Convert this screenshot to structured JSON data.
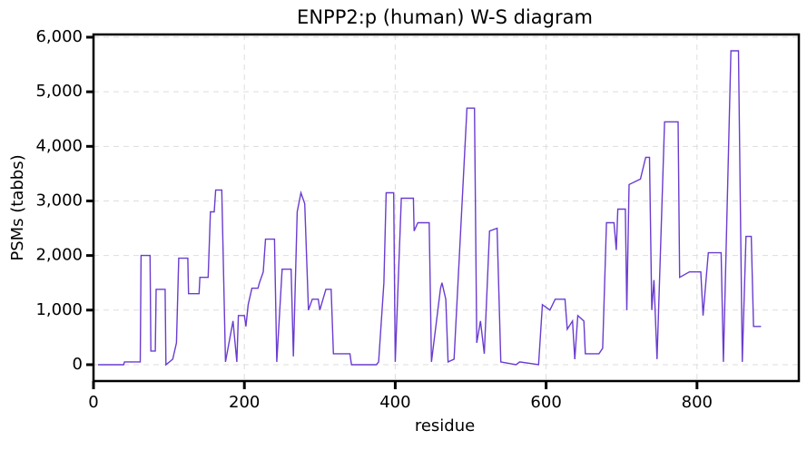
{
  "chart_data": {
    "type": "line",
    "title": "ENPP2:p (human) W-S diagram",
    "xlabel": "residue",
    "ylabel": "PSMs (tabbs)",
    "color": "#6a3cd0",
    "grid": true,
    "xlim": [
      0,
      935
    ],
    "ylim": [
      -300,
      6050
    ],
    "xticks": [
      0,
      200,
      400,
      600,
      800
    ],
    "yticks": [
      0,
      {
        "value": 1000,
        "label": "1,000"
      },
      {
        "value": 2000,
        "label": "2,000"
      },
      {
        "value": 3000,
        "label": "3,000"
      },
      {
        "value": 4000,
        "label": "4,000"
      },
      {
        "value": 5000,
        "label": "5,000"
      },
      {
        "value": 6000,
        "label": "6,000"
      }
    ],
    "x": [
      6,
      40,
      41,
      62,
      63,
      75,
      76,
      82,
      83,
      95,
      96,
      105,
      110,
      113,
      125,
      126,
      140,
      141,
      152,
      155,
      160,
      162,
      170,
      175,
      185,
      190,
      192,
      200,
      202,
      205,
      210,
      218,
      220,
      225,
      228,
      240,
      243,
      250,
      262,
      265,
      270,
      275,
      280,
      285,
      290,
      298,
      300,
      308,
      315,
      318,
      340,
      342,
      375,
      378,
      385,
      388,
      398,
      400,
      408,
      424,
      425,
      430,
      445,
      448,
      460,
      462,
      467,
      470,
      478,
      495,
      505,
      508,
      513,
      518,
      525,
      535,
      540,
      560,
      565,
      590,
      595,
      605,
      612,
      625,
      628,
      635,
      638,
      642,
      650,
      652,
      670,
      675,
      680,
      690,
      693,
      695,
      705,
      707,
      710,
      725,
      732,
      737,
      740,
      743,
      747,
      757,
      775,
      777,
      790,
      805,
      808,
      815,
      832,
      835,
      845,
      855,
      860,
      865,
      872,
      875,
      885
    ],
    "values": [
      0,
      0,
      50,
      50,
      2000,
      2000,
      250,
      250,
      1380,
      1380,
      0,
      100,
      400,
      1950,
      1950,
      1300,
      1300,
      1600,
      1600,
      2800,
      2800,
      3200,
      3200,
      50,
      800,
      50,
      900,
      900,
      700,
      1100,
      1400,
      1400,
      1500,
      1700,
      2300,
      2300,
      50,
      1750,
      1750,
      150,
      2800,
      3150,
      2950,
      1000,
      1200,
      1200,
      1000,
      1380,
      1380,
      200,
      200,
      0,
      0,
      50,
      1500,
      3150,
      3150,
      50,
      3050,
      3050,
      2450,
      2600,
      2600,
      50,
      1400,
      1500,
      1200,
      50,
      100,
      4700,
      4700,
      400,
      800,
      200,
      2450,
      2500,
      50,
      0,
      50,
      0,
      1100,
      1000,
      1200,
      1200,
      650,
      800,
      100,
      900,
      800,
      200,
      200,
      300,
      2600,
      2600,
      2100,
      2850,
      2850,
      1000,
      3300,
      3400,
      3800,
      3800,
      1000,
      1550,
      100,
      4450,
      4450,
      1600,
      1700,
      1700,
      900,
      2050,
      2050,
      50,
      5750,
      5750,
      50,
      2350,
      2350,
      700,
      700
    ]
  }
}
